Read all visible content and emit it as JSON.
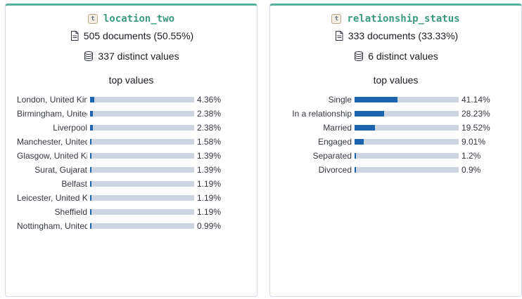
{
  "cards": [
    {
      "field_type_token": "t",
      "field_name": "location_two",
      "documents": "505 documents (50.55%)",
      "distinct": "337 distinct values",
      "top_values_title": "top values",
      "values": [
        {
          "label": "London, United Kingdom",
          "pct": "4.36%",
          "fraction": 0.0436
        },
        {
          "label": "Birmingham, United Kingdom",
          "pct": "2.38%",
          "fraction": 0.0238
        },
        {
          "label": "Liverpool",
          "pct": "2.38%",
          "fraction": 0.0238
        },
        {
          "label": "Manchester, United Kingdom",
          "pct": "1.58%",
          "fraction": 0.0158
        },
        {
          "label": "Glasgow, United Kingdom",
          "pct": "1.39%",
          "fraction": 0.0139
        },
        {
          "label": "Surat, Gujarat",
          "pct": "1.39%",
          "fraction": 0.0139
        },
        {
          "label": "Belfast",
          "pct": "1.19%",
          "fraction": 0.0119
        },
        {
          "label": "Leicester, United Kingdom",
          "pct": "1.19%",
          "fraction": 0.0119
        },
        {
          "label": "Sheffield",
          "pct": "1.19%",
          "fraction": 0.0119
        },
        {
          "label": "Nottingham, United Kingdom",
          "pct": "0.99%",
          "fraction": 0.0099
        }
      ]
    },
    {
      "field_type_token": "t",
      "field_name": "relationship_status",
      "documents": "333 documents (33.33%)",
      "distinct": "6 distinct values",
      "top_values_title": "top values",
      "values": [
        {
          "label": "Single",
          "pct": "41.14%",
          "fraction": 0.4114
        },
        {
          "label": "In a relationship",
          "pct": "28.23%",
          "fraction": 0.2823
        },
        {
          "label": "Married",
          "pct": "19.52%",
          "fraction": 0.1952
        },
        {
          "label": "Engaged",
          "pct": "9.01%",
          "fraction": 0.0901
        },
        {
          "label": "Separated",
          "pct": "1.2%",
          "fraction": 0.012
        },
        {
          "label": "Divorced",
          "pct": "0.9%",
          "fraction": 0.009
        }
      ]
    }
  ],
  "colors": {
    "accent": "#54b399",
    "field_name": "#3a9a80",
    "bar_fill": "#1e63ad",
    "bar_track": "#ccd4df"
  },
  "icons": {
    "documents": "document-icon",
    "distinct": "database-icon"
  }
}
